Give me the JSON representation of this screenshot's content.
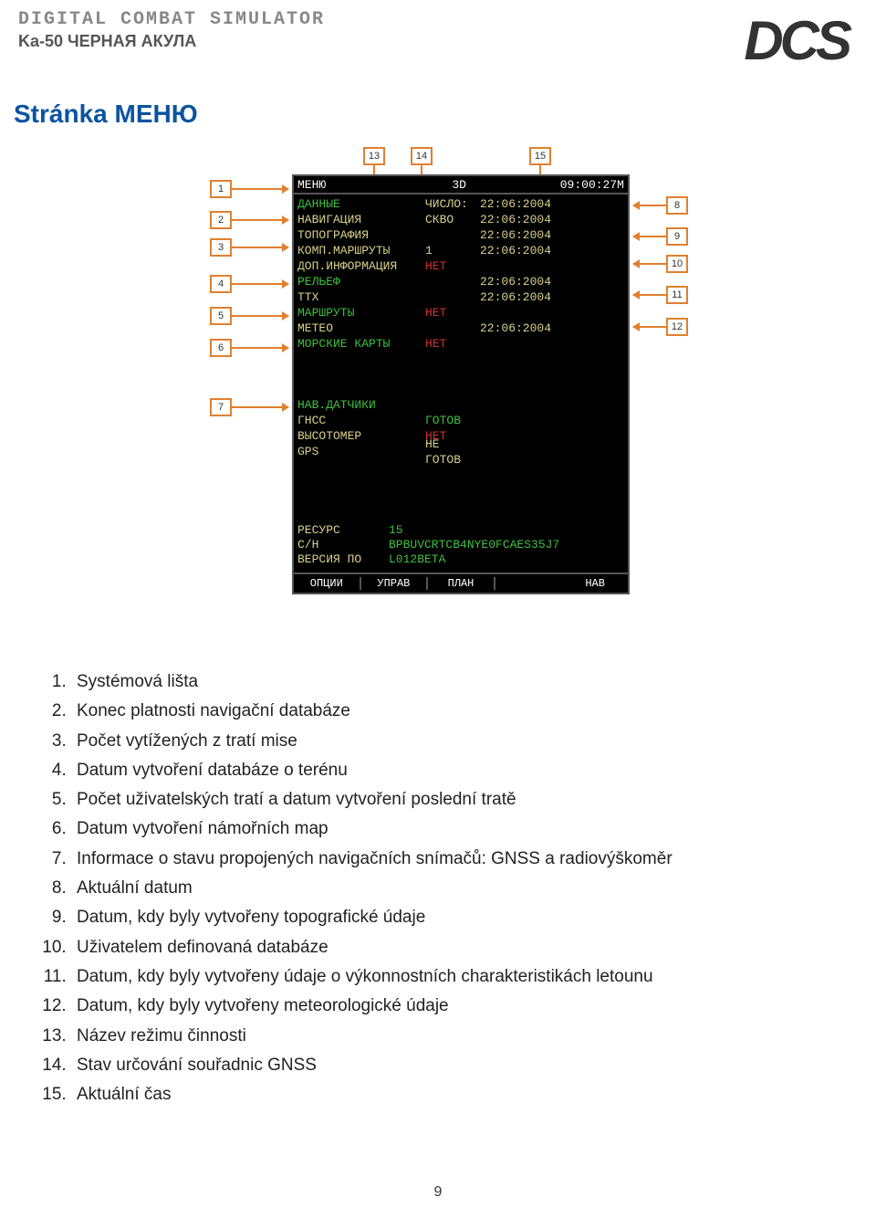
{
  "header": {
    "title1": "DIGITAL COMBAT SIMULATOR",
    "title2": "Ka-50 ЧЕРНАЯ АКУЛА",
    "logo_text": "DCS"
  },
  "page_title": "Stránka МЕНЮ",
  "mfd": {
    "topbar": {
      "left": "МЕНЮ",
      "mid": "3D",
      "right": "09:00:27M"
    },
    "rows": [
      {
        "label": "ДАННЫЕ",
        "mid": "ЧИСЛО:",
        "val": "22:06:2004",
        "label_c": "green",
        "mid_c": "yellow",
        "val_c": "yellow"
      },
      {
        "label": "НАВИГАЦИЯ",
        "mid": "СКВО",
        "val": "22:06:2004",
        "label_c": "yellow",
        "mid_c": "yellow",
        "val_c": "yellow"
      },
      {
        "label": "ТОПОГРАФИЯ",
        "mid": "",
        "val": "22:06:2004",
        "label_c": "yellow",
        "mid_c": "yellow",
        "val_c": "yellow"
      },
      {
        "label": "КОМП.МАРШРУТЫ",
        "mid": "1",
        "val": "22:06:2004",
        "label_c": "yellow",
        "mid_c": "yellow",
        "val_c": "yellow"
      },
      {
        "label": "ДОП.ИНФОРМАЦИЯ",
        "mid": "НЕТ",
        "val": "",
        "label_c": "yellow",
        "mid_c": "red",
        "val_c": "yellow"
      },
      {
        "label": "РЕЛЬЕФ",
        "mid": "",
        "val": "22:06:2004",
        "label_c": "green",
        "mid_c": "yellow",
        "val_c": "yellow"
      },
      {
        "label": "ТТХ",
        "mid": "",
        "val": "22:06:2004",
        "label_c": "yellow",
        "mid_c": "yellow",
        "val_c": "yellow"
      },
      {
        "label": "МАРШРУТЫ",
        "mid": "НЕТ",
        "val": "",
        "label_c": "green",
        "mid_c": "red",
        "val_c": "yellow"
      },
      {
        "label": "МЕТЕО",
        "mid": "",
        "val": "22:06:2004",
        "label_c": "yellow",
        "mid_c": "yellow",
        "val_c": "yellow"
      },
      {
        "label": "МОРСКИЕ КАРТЫ",
        "mid": "НЕТ",
        "val": "",
        "label_c": "green",
        "mid_c": "red",
        "val_c": "yellow"
      }
    ],
    "sensors_title": "НАВ.ДАТЧИКИ",
    "sensors": [
      {
        "label": "ГНСС",
        "status": "ГОТОВ",
        "status_c": "green"
      },
      {
        "label": "ВЫСОТОМЕР",
        "status": "НЕТ",
        "status_c": "red"
      },
      {
        "label": "GPS",
        "status": "НЕ ГОТОВ",
        "status_c": "yellow"
      }
    ],
    "lower": [
      {
        "label": "РЕСУРС",
        "val": "15"
      },
      {
        "label": "С/Н",
        "val": "BPBUVCRTCB4NYE0FCAES35J7"
      },
      {
        "label": "ВЕРСИЯ ПО",
        "val": "L012BETA"
      }
    ],
    "bottombar": [
      "ОПЦИИ",
      "УПРАВ",
      "ПЛАН",
      "",
      "НАВ"
    ]
  },
  "callouts_top": [
    "13",
    "14",
    "15"
  ],
  "callouts_left": [
    "1",
    "2",
    "3",
    "4",
    "5",
    "6",
    "7"
  ],
  "callouts_right": [
    "8",
    "9",
    "10",
    "11",
    "12"
  ],
  "legend": [
    "Systémová lišta",
    "Konec platnosti navigační databáze",
    "Počet vytížených z tratí mise",
    "Datum vytvoření databáze o terénu",
    "Počet uživatelských tratí a datum vytvoření poslední tratě",
    "Datum vytvoření námořních map",
    "Informace o stavu propojených navigačních snímačů: GNSS a radiovýškoměr",
    "Aktuální datum",
    "Datum, kdy byly vytvořeny topografické údaje",
    "Uživatelem definovaná databáze",
    "Datum, kdy byly vytvořeny údaje o výkonnostních charakteristikách letounu",
    "Datum, kdy byly vytvořeny meteorologické údaje",
    "Název režimu činnosti",
    "Stav určování souřadnic GNSS",
    "Aktuální čas"
  ],
  "page_number": "9",
  "colors": {
    "callout_border": "#e08030",
    "green": "#3fbf3f",
    "yellow": "#d8d08c",
    "red": "#d03030",
    "title_blue": "#0b54a0"
  }
}
